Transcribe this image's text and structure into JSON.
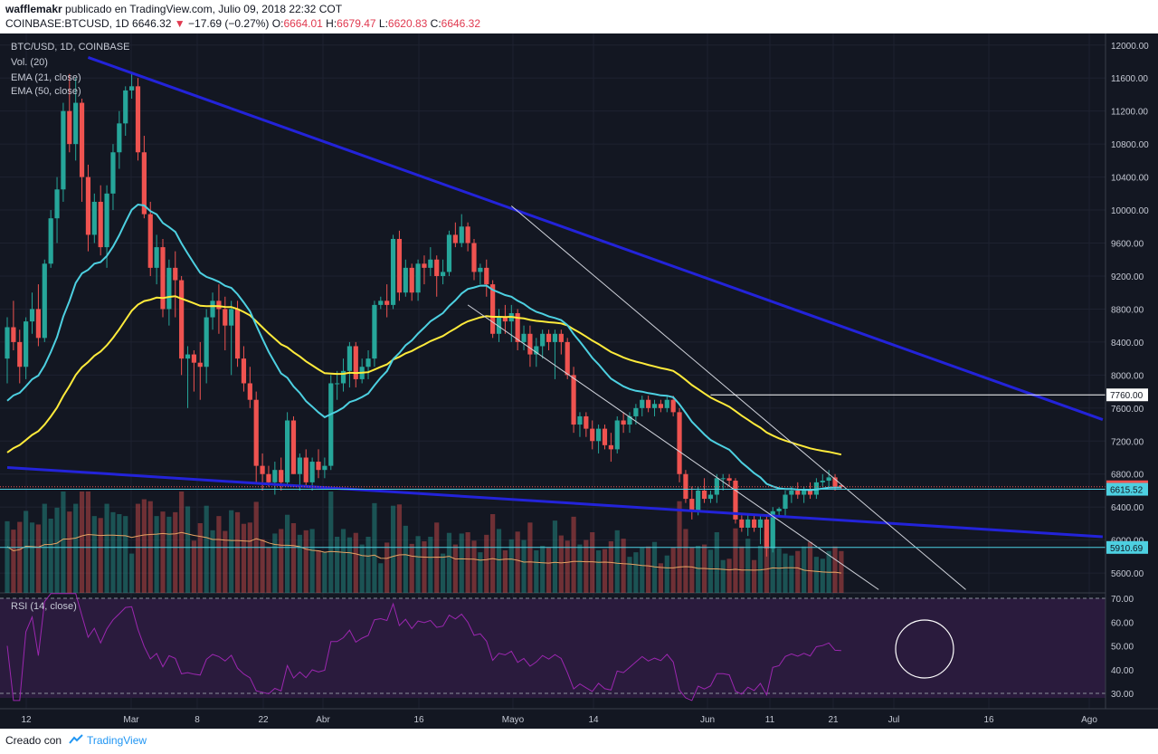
{
  "header": {
    "author": "wafflemakr",
    "published": "publicado en TradingView.com, Julio 09, 2018 22:32 COT",
    "symbol": "COINBASE:BTCUSD, 1D",
    "last": "6646.32",
    "change": "−17.69 (−0.27%)",
    "open_label": "O:",
    "open": "6664.01",
    "high_label": "H:",
    "high": "6679.47",
    "low_label": "L:",
    "low": "6620.83",
    "close_label": "C:",
    "close": "6646.32"
  },
  "legend": {
    "title": "BTC/USD, 1D, COINBASE",
    "vol": "Vol. (20)",
    "ema21": "EMA (21, close)",
    "ema50": "EMA (50, close)",
    "rsi": "RSI (14, close)"
  },
  "footer": {
    "created": "Creado con",
    "brand": "TradingView"
  },
  "colors": {
    "background": "#131722",
    "up": "#26a69a",
    "down": "#ef5350",
    "ema21": "#4dd0e1",
    "ema50": "#ffeb3b",
    "trendline": "#2323d9",
    "channel": "#d1d4dc",
    "rsi": "#9c27b0",
    "rsi_band": "#2a1b3d"
  },
  "chart_data": {
    "type": "candlestick",
    "y_range": [
      5360,
      12140
    ],
    "y_ticks": [
      12000,
      11600,
      11200,
      10800,
      10400,
      10000,
      9600,
      9200,
      8800,
      8400,
      8000,
      7600,
      7200,
      6800,
      6400,
      6000,
      5600
    ],
    "x_labels": [
      "12",
      "Mar",
      "8",
      "22",
      "Abr",
      "16",
      "Mayo",
      "14",
      "Jun",
      "11",
      "21",
      "Jul",
      "16",
      "Ago"
    ],
    "price_tags": [
      {
        "value": 6646.32,
        "label": "6646.32",
        "color": "#ef5350"
      },
      {
        "value": 7760,
        "label": "7760.00",
        "color": "#ffffff"
      },
      {
        "value": 6615.52,
        "label": "6615.52",
        "color": "#4dd0e1"
      },
      {
        "value": 5910.69,
        "label": "5910.69",
        "color": "#4dd0e1"
      }
    ],
    "candles": [
      {
        "o": 8200,
        "h": 8700,
        "l": 7900,
        "c": 8580
      },
      {
        "o": 8580,
        "h": 8900,
        "l": 8300,
        "c": 8400
      },
      {
        "o": 8400,
        "h": 8550,
        "l": 7900,
        "c": 8100
      },
      {
        "o": 8100,
        "h": 8700,
        "l": 7950,
        "c": 8650
      },
      {
        "o": 8650,
        "h": 9000,
        "l": 8500,
        "c": 8800
      },
      {
        "o": 8800,
        "h": 9100,
        "l": 8350,
        "c": 8450
      },
      {
        "o": 8450,
        "h": 9400,
        "l": 8400,
        "c": 9350
      },
      {
        "o": 9350,
        "h": 10000,
        "l": 9300,
        "c": 9900
      },
      {
        "o": 9900,
        "h": 10400,
        "l": 9600,
        "c": 10250
      },
      {
        "o": 10250,
        "h": 11300,
        "l": 10100,
        "c": 11200
      },
      {
        "o": 11200,
        "h": 11650,
        "l": 10700,
        "c": 10800
      },
      {
        "o": 10800,
        "h": 11600,
        "l": 10600,
        "c": 11300
      },
      {
        "o": 11300,
        "h": 11350,
        "l": 10100,
        "c": 10400
      },
      {
        "o": 10400,
        "h": 10550,
        "l": 9500,
        "c": 9700
      },
      {
        "o": 9700,
        "h": 10200,
        "l": 9600,
        "c": 10100
      },
      {
        "o": 10100,
        "h": 10300,
        "l": 9450,
        "c": 9550
      },
      {
        "o": 9550,
        "h": 10300,
        "l": 9300,
        "c": 10200
      },
      {
        "o": 10200,
        "h": 10800,
        "l": 10000,
        "c": 10700
      },
      {
        "o": 10700,
        "h": 11200,
        "l": 10500,
        "c": 11050
      },
      {
        "o": 11050,
        "h": 11500,
        "l": 10900,
        "c": 11450
      },
      {
        "o": 11450,
        "h": 11650,
        "l": 11350,
        "c": 11500
      },
      {
        "o": 11500,
        "h": 11600,
        "l": 10600,
        "c": 10700
      },
      {
        "o": 10700,
        "h": 10900,
        "l": 9900,
        "c": 9950
      },
      {
        "o": 9950,
        "h": 10100,
        "l": 9200,
        "c": 9300
      },
      {
        "o": 9300,
        "h": 9700,
        "l": 9100,
        "c": 9550
      },
      {
        "o": 9550,
        "h": 9650,
        "l": 8700,
        "c": 8800
      },
      {
        "o": 8800,
        "h": 9400,
        "l": 8600,
        "c": 9300
      },
      {
        "o": 9300,
        "h": 9500,
        "l": 8700,
        "c": 9150
      },
      {
        "o": 9150,
        "h": 9200,
        "l": 8000,
        "c": 8200
      },
      {
        "o": 8200,
        "h": 8350,
        "l": 7600,
        "c": 8250
      },
      {
        "o": 8250,
        "h": 8300,
        "l": 7800,
        "c": 8150
      },
      {
        "o": 8150,
        "h": 8400,
        "l": 7700,
        "c": 8100
      },
      {
        "o": 8100,
        "h": 8800,
        "l": 7900,
        "c": 8700
      },
      {
        "o": 8700,
        "h": 9000,
        "l": 8550,
        "c": 8900
      },
      {
        "o": 8900,
        "h": 9100,
        "l": 8500,
        "c": 8800
      },
      {
        "o": 8800,
        "h": 8950,
        "l": 8300,
        "c": 8600
      },
      {
        "o": 8600,
        "h": 8900,
        "l": 8000,
        "c": 8800
      },
      {
        "o": 8800,
        "h": 8900,
        "l": 8100,
        "c": 8200
      },
      {
        "o": 8200,
        "h": 8350,
        "l": 7800,
        "c": 7900
      },
      {
        "o": 7900,
        "h": 8100,
        "l": 7600,
        "c": 7700
      },
      {
        "o": 7700,
        "h": 7800,
        "l": 6700,
        "c": 6900
      },
      {
        "o": 6900,
        "h": 7050,
        "l": 6600,
        "c": 6800
      },
      {
        "o": 6800,
        "h": 6900,
        "l": 6650,
        "c": 6700
      },
      {
        "o": 6700,
        "h": 6950,
        "l": 6550,
        "c": 6850
      },
      {
        "o": 6850,
        "h": 7000,
        "l": 6600,
        "c": 6700
      },
      {
        "o": 6700,
        "h": 7550,
        "l": 6650,
        "c": 7450
      },
      {
        "o": 7450,
        "h": 7500,
        "l": 6800,
        "c": 6800
      },
      {
        "o": 6800,
        "h": 7050,
        "l": 6600,
        "c": 7000
      },
      {
        "o": 7000,
        "h": 7100,
        "l": 6650,
        "c": 6700
      },
      {
        "o": 6700,
        "h": 7000,
        "l": 6600,
        "c": 6950
      },
      {
        "o": 6950,
        "h": 7100,
        "l": 6750,
        "c": 6850
      },
      {
        "o": 6850,
        "h": 7000,
        "l": 6750,
        "c": 6900
      },
      {
        "o": 6900,
        "h": 8000,
        "l": 6850,
        "c": 7900
      },
      {
        "o": 7900,
        "h": 8050,
        "l": 7700,
        "c": 7900
      },
      {
        "o": 7900,
        "h": 8200,
        "l": 7800,
        "c": 8050
      },
      {
        "o": 8050,
        "h": 8400,
        "l": 7850,
        "c": 8350
      },
      {
        "o": 8350,
        "h": 8400,
        "l": 7850,
        "c": 7950
      },
      {
        "o": 7950,
        "h": 8200,
        "l": 7900,
        "c": 8100
      },
      {
        "o": 8100,
        "h": 8300,
        "l": 7950,
        "c": 8200
      },
      {
        "o": 8200,
        "h": 8900,
        "l": 8100,
        "c": 8850
      },
      {
        "o": 8850,
        "h": 8950,
        "l": 8800,
        "c": 8900
      },
      {
        "o": 8900,
        "h": 9100,
        "l": 8700,
        "c": 8850
      },
      {
        "o": 8850,
        "h": 9700,
        "l": 8800,
        "c": 9650
      },
      {
        "o": 9650,
        "h": 9750,
        "l": 8900,
        "c": 9000
      },
      {
        "o": 9000,
        "h": 9400,
        "l": 8950,
        "c": 9300
      },
      {
        "o": 9300,
        "h": 9350,
        "l": 8900,
        "c": 9000
      },
      {
        "o": 9000,
        "h": 9400,
        "l": 8900,
        "c": 9350
      },
      {
        "o": 9350,
        "h": 9450,
        "l": 9100,
        "c": 9300
      },
      {
        "o": 9300,
        "h": 9550,
        "l": 9200,
        "c": 9400
      },
      {
        "o": 9400,
        "h": 9450,
        "l": 8950,
        "c": 9200
      },
      {
        "o": 9200,
        "h": 9400,
        "l": 9100,
        "c": 9250
      },
      {
        "o": 9250,
        "h": 9750,
        "l": 9200,
        "c": 9700
      },
      {
        "o": 9700,
        "h": 9850,
        "l": 9550,
        "c": 9600
      },
      {
        "o": 9600,
        "h": 9950,
        "l": 9550,
        "c": 9800
      },
      {
        "o": 9800,
        "h": 9850,
        "l": 9500,
        "c": 9600
      },
      {
        "o": 9600,
        "h": 9650,
        "l": 9150,
        "c": 9250
      },
      {
        "o": 9250,
        "h": 9350,
        "l": 9100,
        "c": 9300
      },
      {
        "o": 9300,
        "h": 9400,
        "l": 8950,
        "c": 9100
      },
      {
        "o": 9100,
        "h": 9150,
        "l": 8450,
        "c": 8500
      },
      {
        "o": 8500,
        "h": 8800,
        "l": 8400,
        "c": 8700
      },
      {
        "o": 8700,
        "h": 8850,
        "l": 8500,
        "c": 8650
      },
      {
        "o": 8650,
        "h": 8850,
        "l": 8400,
        "c": 8750
      },
      {
        "o": 8750,
        "h": 8800,
        "l": 8300,
        "c": 8400
      },
      {
        "o": 8400,
        "h": 8600,
        "l": 8300,
        "c": 8500
      },
      {
        "o": 8500,
        "h": 8600,
        "l": 8100,
        "c": 8250
      },
      {
        "o": 8250,
        "h": 8450,
        "l": 8100,
        "c": 8350
      },
      {
        "o": 8350,
        "h": 8550,
        "l": 8200,
        "c": 8500
      },
      {
        "o": 8500,
        "h": 8550,
        "l": 8300,
        "c": 8400
      },
      {
        "o": 8400,
        "h": 8550,
        "l": 7950,
        "c": 8500
      },
      {
        "o": 8500,
        "h": 8550,
        "l": 8250,
        "c": 8400
      },
      {
        "o": 8400,
        "h": 8450,
        "l": 7950,
        "c": 8000
      },
      {
        "o": 8000,
        "h": 8100,
        "l": 7300,
        "c": 7400
      },
      {
        "o": 7400,
        "h": 7550,
        "l": 7250,
        "c": 7500
      },
      {
        "o": 7500,
        "h": 7550,
        "l": 7250,
        "c": 7350
      },
      {
        "o": 7350,
        "h": 7450,
        "l": 7100,
        "c": 7200
      },
      {
        "o": 7200,
        "h": 7400,
        "l": 7050,
        "c": 7350
      },
      {
        "o": 7350,
        "h": 7400,
        "l": 7100,
        "c": 7150
      },
      {
        "o": 7150,
        "h": 7300,
        "l": 6950,
        "c": 7100
      },
      {
        "o": 7100,
        "h": 7500,
        "l": 7050,
        "c": 7450
      },
      {
        "o": 7450,
        "h": 7550,
        "l": 7300,
        "c": 7400
      },
      {
        "o": 7400,
        "h": 7550,
        "l": 7300,
        "c": 7500
      },
      {
        "o": 7500,
        "h": 7650,
        "l": 7400,
        "c": 7600
      },
      {
        "o": 7600,
        "h": 7750,
        "l": 7500,
        "c": 7700
      },
      {
        "o": 7700,
        "h": 7750,
        "l": 7550,
        "c": 7600
      },
      {
        "o": 7600,
        "h": 7700,
        "l": 7500,
        "c": 7650
      },
      {
        "o": 7650,
        "h": 7700,
        "l": 7550,
        "c": 7600
      },
      {
        "o": 7600,
        "h": 7750,
        "l": 7550,
        "c": 7700
      },
      {
        "o": 7700,
        "h": 7750,
        "l": 7500,
        "c": 7550
      },
      {
        "o": 7550,
        "h": 7600,
        "l": 6700,
        "c": 6800
      },
      {
        "o": 6800,
        "h": 6850,
        "l": 6450,
        "c": 6500
      },
      {
        "o": 6500,
        "h": 6650,
        "l": 6250,
        "c": 6350
      },
      {
        "o": 6350,
        "h": 6650,
        "l": 6300,
        "c": 6600
      },
      {
        "o": 6600,
        "h": 6750,
        "l": 6450,
        "c": 6500
      },
      {
        "o": 6500,
        "h": 6600,
        "l": 6450,
        "c": 6550
      },
      {
        "o": 6550,
        "h": 6800,
        "l": 6450,
        "c": 6750
      },
      {
        "o": 6750,
        "h": 6800,
        "l": 6600,
        "c": 6750
      },
      {
        "o": 6750,
        "h": 6800,
        "l": 6650,
        "c": 6720
      },
      {
        "o": 6720,
        "h": 6750,
        "l": 6200,
        "c": 6250
      },
      {
        "o": 6250,
        "h": 6300,
        "l": 6100,
        "c": 6150
      },
      {
        "o": 6150,
        "h": 6300,
        "l": 6050,
        "c": 6250
      },
      {
        "o": 6250,
        "h": 6300,
        "l": 6100,
        "c": 6150
      },
      {
        "o": 6150,
        "h": 6300,
        "l": 5950,
        "c": 6250
      },
      {
        "o": 6250,
        "h": 6300,
        "l": 5800,
        "c": 5900
      },
      {
        "o": 5900,
        "h": 6400,
        "l": 5850,
        "c": 6350
      },
      {
        "o": 6350,
        "h": 6400,
        "l": 6300,
        "c": 6380
      },
      {
        "o": 6380,
        "h": 6600,
        "l": 6300,
        "c": 6550
      },
      {
        "o": 6550,
        "h": 6650,
        "l": 6450,
        "c": 6600
      },
      {
        "o": 6600,
        "h": 6700,
        "l": 6500,
        "c": 6550
      },
      {
        "o": 6550,
        "h": 6650,
        "l": 6450,
        "c": 6600
      },
      {
        "o": 6600,
        "h": 6700,
        "l": 6500,
        "c": 6550
      },
      {
        "o": 6550,
        "h": 6750,
        "l": 6500,
        "c": 6700
      },
      {
        "o": 6700,
        "h": 6800,
        "l": 6650,
        "c": 6720
      },
      {
        "o": 6720,
        "h": 6850,
        "l": 6650,
        "c": 6760
      },
      {
        "o": 6760,
        "h": 6800,
        "l": 6600,
        "c": 6650
      },
      {
        "o": 6664.01,
        "h": 6679.47,
        "l": 6620.83,
        "c": 6646.32
      }
    ]
  }
}
